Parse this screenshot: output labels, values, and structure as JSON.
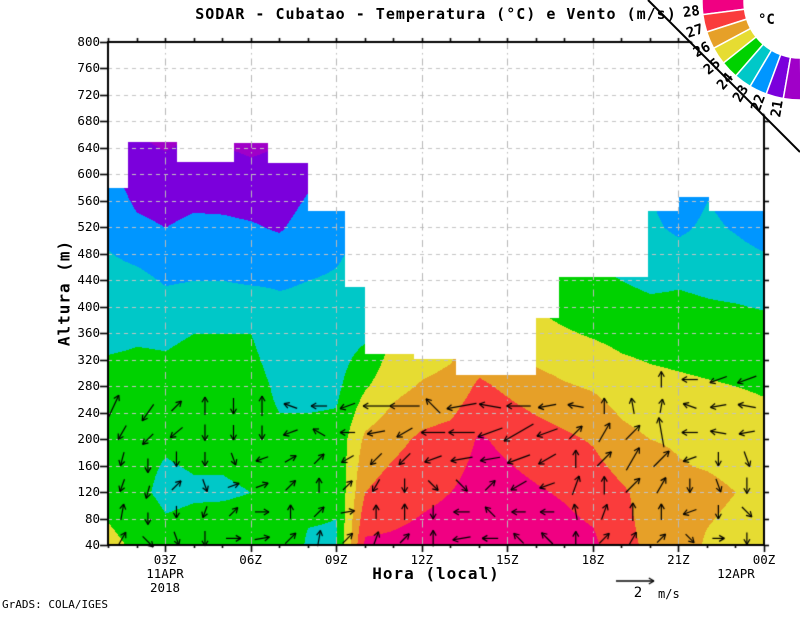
{
  "title": "SODAR - Cubatao - Temperatura (°C) e Vento (m/s)",
  "watermark": "GrADS: COLA/IGES",
  "axes": {
    "y_label": "Altura (m)",
    "x_label": "Hora (local)",
    "y_ticks": [
      "800",
      "760",
      "720",
      "680",
      "640",
      "600",
      "560",
      "520",
      "480",
      "440",
      "400",
      "360",
      "320",
      "280",
      "240",
      "200",
      "160",
      "120",
      "80",
      "40"
    ],
    "x_ticks": [
      {
        "label": "03Z",
        "h": 3,
        "subs": [
          "11APR",
          "2018"
        ]
      },
      {
        "label": "06Z",
        "h": 6,
        "subs": []
      },
      {
        "label": "09Z",
        "h": 9,
        "subs": []
      },
      {
        "label": "12Z",
        "h": 12,
        "subs": []
      },
      {
        "label": "15Z",
        "h": 15,
        "subs": []
      },
      {
        "label": "18Z",
        "h": 18,
        "subs": []
      },
      {
        "label": "21Z",
        "h": 21,
        "subs": []
      },
      {
        "label": "00Z",
        "h": 24,
        "subs": [
          "12APR"
        ]
      }
    ]
  },
  "vector_scale": {
    "value": "2",
    "unit": "m/s"
  },
  "legend": {
    "unit_label": "°C",
    "boundary_labels": [
      "28",
      "27",
      "26",
      "25",
      "24",
      "23",
      "22",
      "21"
    ]
  },
  "chart_data": {
    "type": "filled-contour+vectors",
    "title": "SODAR - Cubatao - Temperatura (°C) e Vento (m/s)",
    "xlabel": "Hora (local)",
    "ylabel": "Altura (m)",
    "x_hours_range": [
      1,
      24
    ],
    "alt_range_m": [
      40,
      800
    ],
    "temp_band_edges_c": [
      21,
      22,
      23,
      24,
      25,
      26,
      27,
      28
    ],
    "band_colors_cold_to_hot": [
      "#A000C8",
      "#7B00DC",
      "#0096FF",
      "#00C8C8",
      "#00D200",
      "#E6DC32",
      "#E6A028",
      "#FA3C3C",
      "#F00082"
    ],
    "grid_alt_m": [
      40,
      120,
      200,
      280,
      360,
      440,
      520,
      600,
      680,
      760
    ],
    "grid_hours": [
      1,
      2,
      3,
      4,
      5,
      6,
      7,
      8,
      9,
      10,
      11,
      12,
      13,
      14,
      15,
      16,
      17,
      18,
      19,
      20,
      21,
      22,
      23,
      24
    ],
    "temp_grid_c": [
      [
        25.3,
        24.6,
        24.4,
        24.3,
        23.8,
        23.4,
        22.7,
        22.3,
        21.9,
        21.7
      ],
      [
        24.8,
        24.2,
        24.2,
        24.3,
        23.9,
        23.3,
        22.2,
        21.5,
        20.9,
        20.8
      ],
      [
        24.3,
        23.8,
        24.1,
        24.2,
        23.9,
        22.9,
        22.0,
        21.4,
        20.5,
        20.3
      ],
      [
        24.4,
        23.9,
        24.2,
        24.3,
        24.0,
        23.0,
        22.2,
        21.5,
        20.9,
        20.8
      ],
      [
        24.5,
        23.9,
        24.2,
        24.3,
        24.0,
        23.0,
        22.2,
        21.4,
        20.7,
        20.5
      ],
      [
        24.5,
        24.0,
        24.3,
        24.4,
        24.0,
        22.9,
        22.1,
        21.3,
        20.4,
        20.2
      ],
      [
        24.6,
        24.1,
        24.2,
        23.8,
        23.4,
        22.9,
        21.9,
        21.3,
        20.8,
        20.6
      ],
      [
        23.9,
        24.2,
        24.3,
        23.7,
        23.4,
        23.0,
        22.4,
        21.8,
        21.4,
        21.2
      ],
      [
        23.9,
        24.1,
        24.3,
        23.8,
        23.5,
        23.1,
        22.7,
        22.2,
        21.9,
        21.7
      ],
      [
        28.2,
        27.0,
        26.2,
        24.9,
        23.8,
        23.4,
        23.1,
        22.9,
        22.7,
        22.5
      ],
      [
        28.2,
        27.5,
        26.7,
        25.7,
        25.1,
        24.6,
        24.2,
        23.9,
        23.6,
        23.4
      ],
      [
        28.3,
        27.8,
        27.2,
        26.1,
        25.3,
        24.8,
        24.4,
        24.1,
        23.8,
        23.6
      ],
      [
        28.4,
        28.0,
        27.4,
        26.3,
        25.6,
        25.0,
        24.6,
        24.3,
        24.0,
        23.8
      ],
      [
        28.6,
        28.4,
        28.1,
        27.2,
        26.0,
        25.3,
        24.8,
        24.5,
        24.2,
        24.0
      ],
      [
        28.6,
        28.3,
        27.8,
        26.8,
        26.0,
        25.2,
        24.7,
        24.4,
        24.1,
        23.9
      ],
      [
        28.5,
        28.1,
        27.5,
        26.4,
        25.3,
        24.7,
        24.3,
        24.0,
        23.7,
        23.5
      ],
      [
        28.4,
        27.9,
        27.2,
        26.1,
        25.1,
        24.3,
        23.9,
        23.6,
        23.3,
        23.1
      ],
      [
        28.2,
        27.6,
        26.9,
        25.9,
        24.9,
        24.2,
        23.7,
        23.4,
        23.1,
        22.9
      ],
      [
        27.3,
        27.15,
        26.3,
        25.5,
        24.7,
        24.0,
        23.3,
        23.0,
        22.7,
        22.5
      ],
      [
        26.8,
        26.6,
        26.0,
        25.3,
        24.6,
        23.8,
        23.2,
        22.9,
        22.6,
        22.4
      ],
      [
        26.4,
        26.2,
        25.9,
        25.2,
        24.5,
        23.9,
        22.8,
        22.2,
        21.9,
        21.7
      ],
      [
        25.9,
        26.2,
        25.7,
        25.1,
        24.4,
        23.8,
        23.2,
        22.8,
        22.5,
        22.3
      ],
      [
        25.7,
        26.0,
        25.6,
        25.0,
        24.4,
        23.7,
        22.9,
        22.5,
        22.2,
        22.0
      ],
      [
        25.5,
        25.8,
        25.4,
        24.9,
        24.3,
        23.6,
        22.5,
        21.9,
        21.6,
        21.4
      ]
    ],
    "data_top_envelope": [
      [
        1.0,
        580
      ],
      [
        1.7,
        650
      ],
      [
        3.4,
        620
      ],
      [
        5.4,
        648
      ],
      [
        6.6,
        618
      ],
      [
        8.0,
        545
      ],
      [
        9.3,
        430
      ],
      [
        10.0,
        330
      ],
      [
        11.7,
        322
      ],
      [
        13.2,
        298
      ],
      [
        16.0,
        383
      ],
      [
        16.8,
        445
      ],
      [
        19.9,
        546
      ],
      [
        21.0,
        567
      ],
      [
        22.05,
        546
      ]
    ],
    "wind_arrows": [
      [
        1.2,
        250,
        65,
        24
      ],
      [
        1.5,
        210,
        240,
        16
      ],
      [
        1.5,
        170,
        255,
        14
      ],
      [
        1.5,
        130,
        250,
        13
      ],
      [
        1.5,
        90,
        80,
        16
      ],
      [
        1.5,
        50,
        60,
        14
      ],
      [
        2.4,
        240,
        235,
        20
      ],
      [
        2.4,
        200,
        225,
        15
      ],
      [
        2.4,
        160,
        270,
        14
      ],
      [
        2.4,
        120,
        255,
        13
      ],
      [
        2.4,
        80,
        270,
        12
      ],
      [
        2.4,
        45,
        315,
        15
      ],
      [
        3.4,
        250,
        45,
        14
      ],
      [
        3.4,
        210,
        220,
        16
      ],
      [
        3.4,
        170,
        270,
        15
      ],
      [
        3.4,
        130,
        45,
        13
      ],
      [
        3.4,
        90,
        270,
        12
      ],
      [
        3.4,
        50,
        290,
        14
      ],
      [
        4.4,
        250,
        90,
        18
      ],
      [
        4.4,
        210,
        270,
        16
      ],
      [
        4.4,
        170,
        270,
        14
      ],
      [
        4.4,
        130,
        290,
        13
      ],
      [
        4.4,
        90,
        250,
        12
      ],
      [
        4.4,
        50,
        270,
        15
      ],
      [
        5.4,
        250,
        270,
        16
      ],
      [
        5.4,
        210,
        270,
        15
      ],
      [
        5.4,
        170,
        290,
        13
      ],
      [
        5.4,
        130,
        20,
        12
      ],
      [
        5.4,
        90,
        45,
        12
      ],
      [
        5.4,
        50,
        0,
        15
      ],
      [
        6.4,
        250,
        90,
        20
      ],
      [
        6.4,
        210,
        270,
        14
      ],
      [
        6.4,
        170,
        200,
        13
      ],
      [
        6.4,
        130,
        20,
        13
      ],
      [
        6.4,
        90,
        0,
        14
      ],
      [
        6.4,
        50,
        10,
        15
      ],
      [
        7.4,
        250,
        160,
        14
      ],
      [
        7.4,
        210,
        200,
        15
      ],
      [
        7.4,
        170,
        30,
        13
      ],
      [
        7.4,
        130,
        45,
        14
      ],
      [
        7.4,
        90,
        90,
        14
      ],
      [
        7.4,
        50,
        45,
        15
      ],
      [
        8.4,
        250,
        180,
        16
      ],
      [
        8.4,
        210,
        150,
        14
      ],
      [
        8.4,
        170,
        45,
        14
      ],
      [
        8.4,
        130,
        90,
        15
      ],
      [
        8.4,
        90,
        45,
        14
      ],
      [
        8.4,
        50,
        80,
        16
      ],
      [
        9.4,
        250,
        200,
        16
      ],
      [
        9.4,
        210,
        180,
        15
      ],
      [
        9.4,
        170,
        210,
        14
      ],
      [
        9.4,
        130,
        45,
        13
      ],
      [
        9.4,
        90,
        10,
        14
      ],
      [
        9.4,
        50,
        45,
        14
      ],
      [
        10.4,
        250,
        180,
        26
      ],
      [
        10.4,
        210,
        190,
        18
      ],
      [
        10.4,
        170,
        225,
        16
      ],
      [
        10.4,
        130,
        240,
        14
      ],
      [
        10.4,
        90,
        90,
        14
      ],
      [
        10.4,
        50,
        70,
        14
      ],
      [
        11.4,
        250,
        180,
        30
      ],
      [
        11.4,
        210,
        210,
        18
      ],
      [
        11.4,
        170,
        225,
        16
      ],
      [
        11.4,
        130,
        270,
        14
      ],
      [
        11.4,
        90,
        90,
        16
      ],
      [
        11.4,
        50,
        45,
        13
      ],
      [
        12.4,
        250,
        135,
        20
      ],
      [
        12.4,
        210,
        180,
        24
      ],
      [
        12.4,
        170,
        200,
        18
      ],
      [
        12.4,
        130,
        315,
        14
      ],
      [
        12.4,
        90,
        270,
        14
      ],
      [
        12.4,
        50,
        90,
        16
      ],
      [
        13.4,
        250,
        190,
        30
      ],
      [
        13.4,
        210,
        180,
        26
      ],
      [
        13.4,
        170,
        190,
        22
      ],
      [
        13.4,
        130,
        315,
        16
      ],
      [
        13.4,
        90,
        180,
        16
      ],
      [
        13.4,
        50,
        190,
        18
      ],
      [
        14.4,
        250,
        170,
        22
      ],
      [
        14.4,
        210,
        200,
        26
      ],
      [
        14.4,
        170,
        190,
        20
      ],
      [
        14.4,
        130,
        45,
        14
      ],
      [
        14.4,
        90,
        135,
        14
      ],
      [
        14.4,
        50,
        180,
        16
      ],
      [
        15.4,
        250,
        180,
        24
      ],
      [
        15.4,
        210,
        210,
        34
      ],
      [
        15.4,
        170,
        200,
        24
      ],
      [
        15.4,
        130,
        210,
        18
      ],
      [
        15.4,
        90,
        180,
        14
      ],
      [
        15.4,
        50,
        135,
        14
      ],
      [
        16.4,
        250,
        190,
        18
      ],
      [
        16.4,
        210,
        200,
        22
      ],
      [
        16.4,
        170,
        210,
        20
      ],
      [
        16.4,
        130,
        200,
        16
      ],
      [
        16.4,
        90,
        180,
        14
      ],
      [
        16.4,
        50,
        135,
        16
      ],
      [
        17.4,
        250,
        170,
        16
      ],
      [
        17.4,
        210,
        45,
        18
      ],
      [
        17.4,
        170,
        90,
        18
      ],
      [
        17.4,
        130,
        70,
        20
      ],
      [
        17.4,
        90,
        100,
        16
      ],
      [
        17.4,
        50,
        90,
        14
      ],
      [
        18.4,
        250,
        90,
        16
      ],
      [
        18.4,
        210,
        60,
        22
      ],
      [
        18.4,
        170,
        45,
        20
      ],
      [
        18.4,
        130,
        90,
        18
      ],
      [
        18.4,
        90,
        70,
        16
      ],
      [
        18.4,
        50,
        45,
        14
      ],
      [
        19.4,
        250,
        100,
        16
      ],
      [
        19.4,
        210,
        45,
        20
      ],
      [
        19.4,
        170,
        60,
        26
      ],
      [
        19.4,
        130,
        45,
        20
      ],
      [
        19.4,
        90,
        90,
        18
      ],
      [
        19.4,
        50,
        60,
        14
      ],
      [
        20.4,
        290,
        90,
        16
      ],
      [
        20.4,
        250,
        80,
        14
      ],
      [
        20.4,
        210,
        100,
        30
      ],
      [
        20.4,
        170,
        45,
        22
      ],
      [
        20.4,
        130,
        60,
        18
      ],
      [
        20.4,
        90,
        90,
        16
      ],
      [
        20.4,
        50,
        45,
        12
      ],
      [
        21.4,
        290,
        180,
        16
      ],
      [
        21.4,
        250,
        160,
        14
      ],
      [
        21.4,
        210,
        180,
        16
      ],
      [
        21.4,
        170,
        200,
        14
      ],
      [
        21.4,
        130,
        270,
        14
      ],
      [
        21.4,
        90,
        200,
        14
      ],
      [
        21.4,
        50,
        315,
        12
      ],
      [
        22.4,
        290,
        200,
        18
      ],
      [
        22.4,
        250,
        190,
        16
      ],
      [
        22.4,
        210,
        170,
        16
      ],
      [
        22.4,
        170,
        270,
        14
      ],
      [
        22.4,
        130,
        290,
        14
      ],
      [
        22.4,
        90,
        270,
        14
      ],
      [
        22.4,
        50,
        0,
        12
      ],
      [
        23.4,
        290,
        200,
        20
      ],
      [
        23.4,
        250,
        170,
        18
      ],
      [
        23.4,
        210,
        190,
        16
      ],
      [
        23.4,
        170,
        290,
        16
      ],
      [
        23.4,
        130,
        270,
        16
      ],
      [
        23.4,
        90,
        315,
        14
      ],
      [
        23.4,
        50,
        270,
        12
      ]
    ]
  }
}
